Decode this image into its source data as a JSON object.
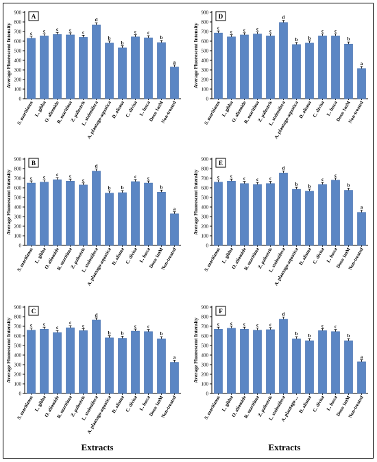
{
  "chart_data": [
    {
      "type": "bar",
      "panel_label": "A",
      "categories": [
        "S. maritimus",
        "L. gibba",
        "O. aliomide",
        "R. maritima",
        "Z. palustris",
        "L. stolonifera",
        "A. plantago-aquatica",
        "D. alisma",
        "C. divisa",
        "L. fusca",
        "Doxo 1mM",
        "Non-treated"
      ],
      "values": [
        630,
        655,
        670,
        665,
        640,
        770,
        580,
        530,
        645,
        635,
        585,
        330
      ],
      "sig_letters": [
        "c",
        "c",
        "c",
        "c",
        "c",
        "d",
        "b",
        "b",
        "c",
        "c",
        "b",
        "a"
      ],
      "ylabel": "Average Fluorescent Intensity",
      "xlabel": "",
      "ylim": [
        0,
        900
      ],
      "yticks": [
        "0",
        "100",
        "200",
        "300",
        "400",
        "500",
        "600",
        "700",
        "800",
        "900"
      ],
      "bar_color": "#5b86c4"
    },
    {
      "type": "bar",
      "panel_label": "D",
      "categories": [
        "S. maritimus",
        "L. gibba",
        "O. aliomide",
        "R. maritima",
        "Z. palustris",
        "L. stolonifera",
        "A. plantago-aquatica",
        "D. alisma",
        "C. divisa",
        "L. fusca",
        "Doxo 1mM",
        "Non-treated"
      ],
      "values": [
        685,
        645,
        665,
        675,
        655,
        795,
        565,
        580,
        655,
        655,
        570,
        315
      ],
      "sig_letters": [
        "c",
        "c",
        "c",
        "c",
        "c",
        "d",
        "b",
        "b",
        "c",
        "c",
        "b",
        "a"
      ],
      "ylabel": "Average Fluorescent Intensity",
      "xlabel": "",
      "ylim": [
        0,
        900
      ],
      "yticks": [
        "0",
        "100",
        "200",
        "300",
        "400",
        "500",
        "600",
        "700",
        "800",
        "900"
      ],
      "bar_color": "#5b86c4"
    },
    {
      "type": "bar",
      "panel_label": "B",
      "categories": [
        "S. maritimus",
        "L. gibba",
        "O. aliomide",
        "R. maritima",
        "Z. palustris",
        "L. stolonifera",
        "A. plantago-aquatica",
        "D. alisma",
        "C. divisa",
        "L. fusca",
        "Doxo 1mM",
        "Non-treated"
      ],
      "values": [
        650,
        660,
        685,
        670,
        630,
        775,
        545,
        550,
        665,
        650,
        555,
        330
      ],
      "sig_letters": [
        "c",
        "c",
        "c",
        "c",
        "c",
        "d",
        "b",
        "b",
        "c",
        "c",
        "b",
        "a"
      ],
      "ylabel": "Average Fluorescent Intensity",
      "xlabel": "",
      "ylim": [
        0,
        900
      ],
      "yticks": [
        "0",
        "100",
        "200",
        "300",
        "400",
        "500",
        "600",
        "700",
        "800",
        "900"
      ],
      "bar_color": "#5b86c4"
    },
    {
      "type": "bar",
      "panel_label": "E",
      "categories": [
        "S. maritimus",
        "L. gibba",
        "O. aliomide",
        "R. maritima",
        "Z. palustris",
        "L. stolonifera",
        "A. plantago-aquatica",
        "D. alisma",
        "C. divisa",
        "L. fusca",
        "Doxo 1mM",
        "Non-treated"
      ],
      "values": [
        660,
        670,
        645,
        635,
        645,
        755,
        585,
        565,
        635,
        680,
        575,
        345
      ],
      "sig_letters": [
        "c",
        "c",
        "c",
        "c",
        "c",
        "d",
        "b",
        "b",
        "c",
        "c",
        "b",
        "a"
      ],
      "ylabel": "Average Fluorescent Intensity",
      "xlabel": "",
      "ylim": [
        0,
        900
      ],
      "yticks": [
        "0",
        "100",
        "200",
        "300",
        "400",
        "500",
        "600",
        "700",
        "800",
        "900"
      ],
      "bar_color": "#5b86c4"
    },
    {
      "type": "bar",
      "panel_label": "C",
      "categories": [
        "S. maritimus",
        "L. gibba",
        "O. aliomide",
        "R. maritima",
        "Z. palustris",
        "L. stolonifera",
        "A. plantago-aquatica",
        "D. alisma",
        "C. divisa",
        "L. fusca",
        "Doxo 1mM",
        "Non-treated"
      ],
      "values": [
        660,
        670,
        635,
        685,
        655,
        765,
        580,
        575,
        650,
        645,
        570,
        325
      ],
      "sig_letters": [
        "c",
        "c",
        "c",
        "c",
        "c",
        "d",
        "b",
        "b",
        "c",
        "c",
        "b",
        "a"
      ],
      "ylabel": "Average Fluorescent Intensity",
      "xlabel": "Extracts",
      "ylim": [
        0,
        900
      ],
      "yticks": [
        "0",
        "100",
        "200",
        "300",
        "400",
        "500",
        "600",
        "700",
        "800",
        "900"
      ],
      "bar_color": "#5b86c4"
    },
    {
      "type": "bar",
      "panel_label": "F",
      "categories": [
        "S. maritimus",
        "L. gibba",
        "O. aliomide",
        "R. maritima",
        "Z. palustris",
        "L. stolonifera",
        "A. plantago-...",
        "D. alisma",
        "C. divisa",
        "L. fusca",
        "Doxo 1mM",
        "Non-treated"
      ],
      "values": [
        670,
        680,
        670,
        660,
        665,
        775,
        570,
        550,
        655,
        645,
        550,
        330
      ],
      "sig_letters": [
        "c",
        "c",
        "c",
        "c",
        "c",
        "d",
        "b",
        "b",
        "c",
        "c",
        "b",
        "a"
      ],
      "ylabel": "Average Fluorescent Intensity",
      "xlabel": "Extracts",
      "ylim": [
        0,
        900
      ],
      "yticks": [
        "0",
        "100",
        "200",
        "300",
        "400",
        "500",
        "600",
        "700",
        "800",
        "900"
      ],
      "bar_color": "#5b86c4"
    }
  ]
}
